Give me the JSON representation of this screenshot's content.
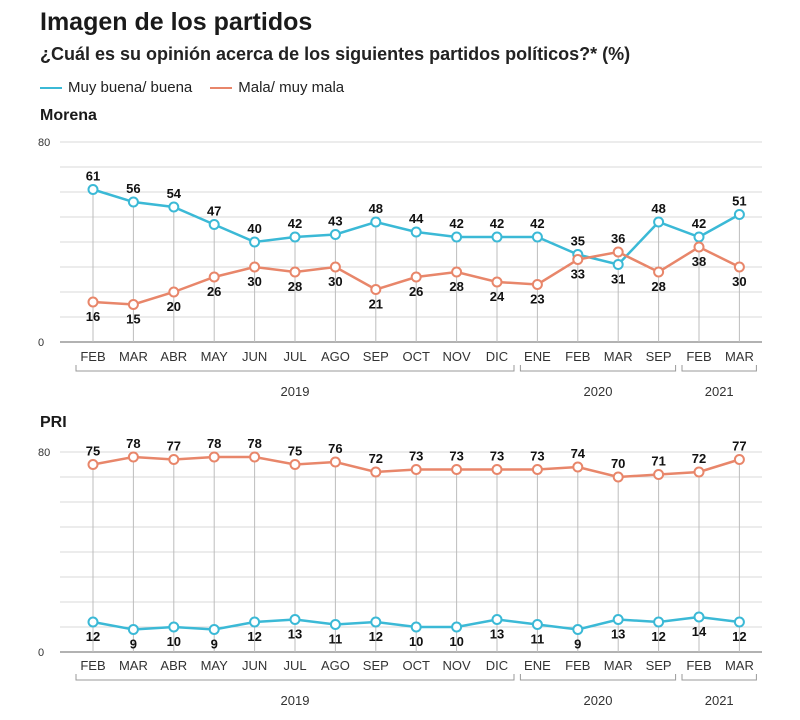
{
  "title": "Imagen de los partidos",
  "subtitle": "¿Cuál es su opinión acerca de los siguientes partidos políticos?*  (%)",
  "legend": [
    {
      "label": "Muy buena/ buena",
      "color": "#3bb9d6"
    },
    {
      "label": "Mala/ muy mala",
      "color": "#e8866a"
    }
  ],
  "chart_data": [
    {
      "type": "line",
      "title": "Morena",
      "ylim": [
        0,
        80
      ],
      "yticks": [
        0,
        80
      ],
      "grid": true,
      "categories": [
        "FEB",
        "MAR",
        "ABR",
        "MAY",
        "JUN",
        "JUL",
        "AGO",
        "SEP",
        "OCT",
        "NOV",
        "DIC",
        "ENE",
        "FEB",
        "MAR",
        "SEP",
        "FEB",
        "MAR"
      ],
      "year_groups": [
        {
          "label": "2019",
          "start": 0,
          "end": 10
        },
        {
          "label": "2020",
          "start": 11,
          "end": 14
        },
        {
          "label": "2021",
          "start": 15,
          "end": 16
        }
      ],
      "series": [
        {
          "name": "Muy buena/ buena",
          "color": "#3bb9d6",
          "values": [
            61,
            56,
            54,
            47,
            40,
            42,
            43,
            48,
            44,
            42,
            42,
            42,
            35,
            31,
            48,
            42,
            51
          ]
        },
        {
          "name": "Mala/ muy mala",
          "color": "#e8866a",
          "values": [
            16,
            15,
            20,
            26,
            30,
            28,
            30,
            21,
            26,
            28,
            24,
            23,
            33,
            36,
            28,
            38,
            30
          ]
        }
      ]
    },
    {
      "type": "line",
      "title": "PRI",
      "ylim": [
        0,
        80
      ],
      "yticks": [
        0,
        80
      ],
      "grid": true,
      "categories": [
        "FEB",
        "MAR",
        "ABR",
        "MAY",
        "JUN",
        "JUL",
        "AGO",
        "SEP",
        "OCT",
        "NOV",
        "DIC",
        "ENE",
        "FEB",
        "MAR",
        "SEP",
        "FEB",
        "MAR"
      ],
      "year_groups": [
        {
          "label": "2019",
          "start": 0,
          "end": 10
        },
        {
          "label": "2020",
          "start": 11,
          "end": 14
        },
        {
          "label": "2021",
          "start": 15,
          "end": 16
        }
      ],
      "series": [
        {
          "name": "Muy buena/ buena",
          "color": "#3bb9d6",
          "values": [
            12,
            9,
            10,
            9,
            12,
            13,
            11,
            12,
            10,
            10,
            13,
            11,
            9,
            13,
            12,
            14,
            12
          ]
        },
        {
          "name": "Mala/ muy mala",
          "color": "#e8866a",
          "values": [
            75,
            78,
            77,
            78,
            78,
            75,
            76,
            72,
            73,
            73,
            73,
            73,
            74,
            70,
            71,
            72,
            77
          ]
        }
      ]
    }
  ]
}
